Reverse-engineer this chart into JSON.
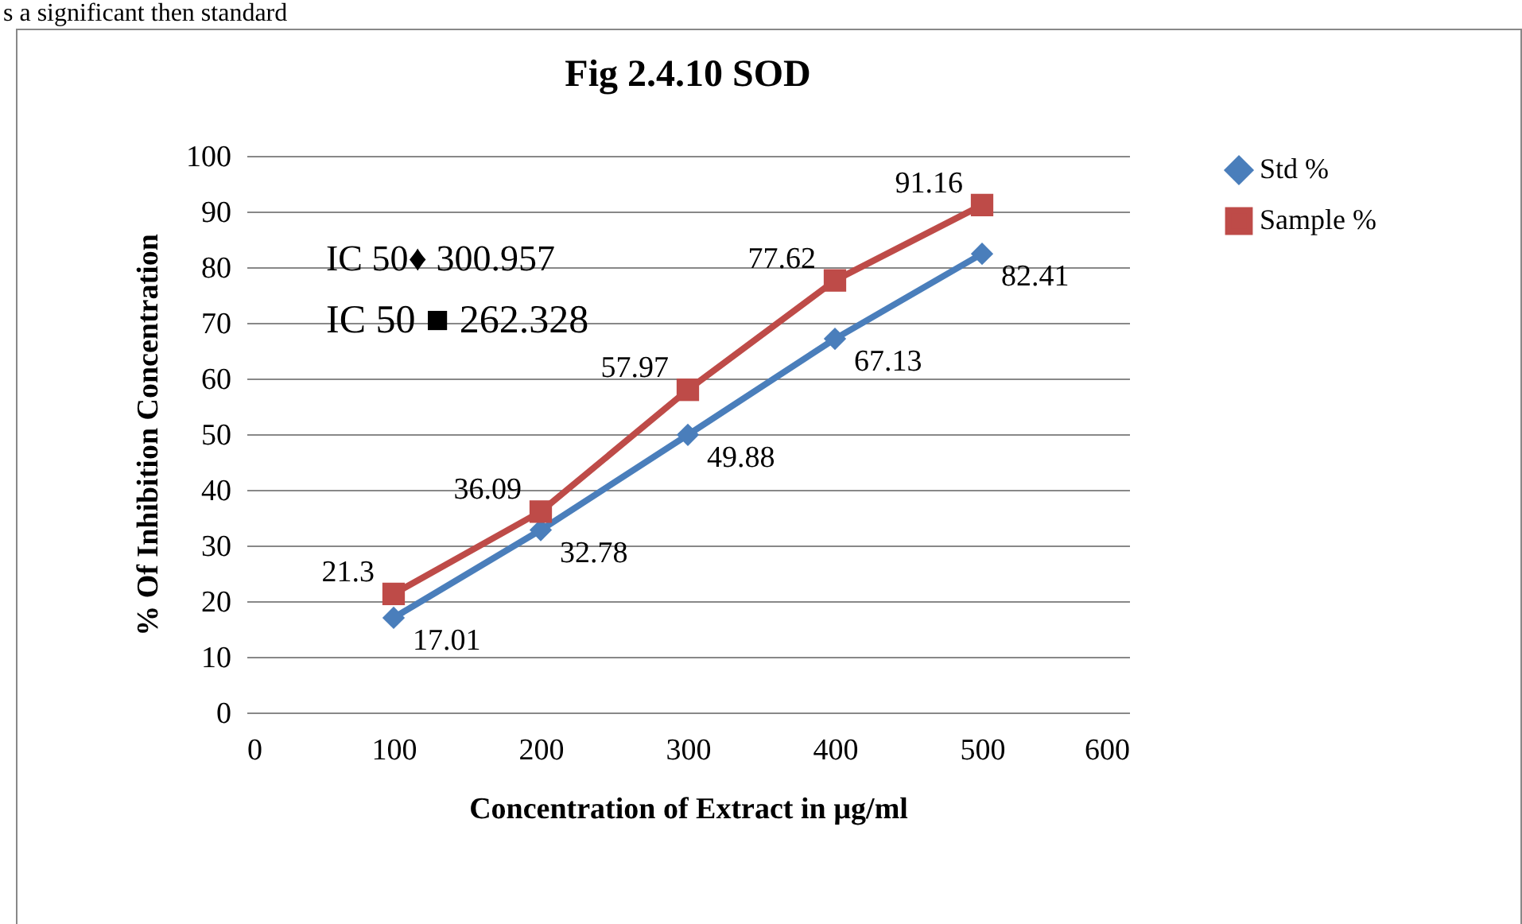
{
  "chart_data": {
    "type": "line",
    "title": "Fig 2.4.10 SOD",
    "xlabel": "Concentration of Extract in µg/ml",
    "ylabel": "% Of Inhibition Concentration",
    "annotations": [
      "s a significant then standard",
      "IC 50♦ 300.957",
      "IC 50 ■ 262.328"
    ],
    "x": [
      100,
      200,
      300,
      400,
      500
    ],
    "series": [
      {
        "name": "Std %",
        "color": "#4a7ebb",
        "marker": "diamond",
        "values": [
          17.01,
          32.78,
          49.88,
          67.13,
          82.41
        ]
      },
      {
        "name": "Sample  %",
        "color": "#be4b48",
        "marker": "square",
        "values": [
          21.3,
          36.09,
          57.97,
          77.62,
          91.16
        ]
      }
    ],
    "xlim": [
      0,
      600
    ],
    "xticks": [
      0,
      100,
      200,
      300,
      400,
      500,
      600
    ],
    "ylim": [
      0,
      100
    ],
    "yticks": [
      0,
      10,
      20,
      30,
      40,
      50,
      60,
      70,
      80,
      90,
      100
    ],
    "grid": "y",
    "legend": "right",
    "data_labels": true,
    "line_style": "solid"
  }
}
